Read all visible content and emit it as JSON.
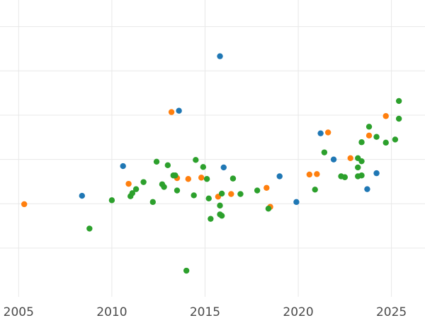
{
  "chart_data": {
    "type": "scatter",
    "title": "",
    "xlabel": "",
    "ylabel": "",
    "grid": true,
    "xlim": [
      2004.0,
      2026.8
    ],
    "ylim": [
      -1.1,
      5.6
    ],
    "x_ticks": [
      2005,
      2010,
      2015,
      2020,
      2025
    ],
    "y_gridlines": [
      0,
      1,
      2,
      3,
      4,
      5
    ],
    "colors": {
      "blue": "#1f77b4",
      "orange": "#ff7f0e",
      "green": "#2ca02c",
      "grid": "#e8e8e8",
      "tick_text": "#4a4a4a"
    },
    "series": [
      {
        "color": "#1f77b4",
        "points": [
          [
            2008.4,
            1.18
          ],
          [
            2010.6,
            1.85
          ],
          [
            2013.6,
            3.1
          ],
          [
            2015.8,
            4.33
          ],
          [
            2016.0,
            1.82
          ],
          [
            2019.0,
            1.62
          ],
          [
            2019.9,
            1.04
          ],
          [
            2021.2,
            2.59
          ],
          [
            2021.9,
            2.0
          ],
          [
            2023.7,
            1.33
          ],
          [
            2024.2,
            1.69
          ]
        ]
      },
      {
        "color": "#ff7f0e",
        "points": [
          [
            2005.3,
            0.99
          ],
          [
            2010.9,
            1.45
          ],
          [
            2013.2,
            3.07
          ],
          [
            2013.5,
            1.58
          ],
          [
            2014.1,
            1.56
          ],
          [
            2014.8,
            1.59
          ],
          [
            2015.7,
            1.16
          ],
          [
            2016.4,
            1.22
          ],
          [
            2018.3,
            1.36
          ],
          [
            2018.5,
            0.93
          ],
          [
            2020.6,
            1.66
          ],
          [
            2021.0,
            1.67
          ],
          [
            2021.6,
            2.61
          ],
          [
            2022.8,
            2.03
          ],
          [
            2023.8,
            2.54
          ],
          [
            2024.7,
            2.98
          ]
        ]
      },
      {
        "color": "#2ca02c",
        "points": [
          [
            2008.8,
            0.44
          ],
          [
            2010.0,
            1.08
          ],
          [
            2011.0,
            1.17
          ],
          [
            2011.1,
            1.24
          ],
          [
            2011.3,
            1.33
          ],
          [
            2011.7,
            1.49
          ],
          [
            2012.2,
            1.04
          ],
          [
            2012.4,
            1.95
          ],
          [
            2012.7,
            1.44
          ],
          [
            2012.8,
            1.38
          ],
          [
            2013.0,
            1.87
          ],
          [
            2013.3,
            1.64
          ],
          [
            2013.4,
            1.64
          ],
          [
            2013.5,
            1.3
          ],
          [
            2014.0,
            -0.51
          ],
          [
            2014.4,
            1.19
          ],
          [
            2014.5,
            1.99
          ],
          [
            2014.9,
            1.83
          ],
          [
            2015.1,
            1.56
          ],
          [
            2015.2,
            1.12
          ],
          [
            2015.3,
            0.66
          ],
          [
            2015.8,
            0.76
          ],
          [
            2015.8,
            0.96
          ],
          [
            2015.9,
            1.23
          ],
          [
            2015.9,
            0.73
          ],
          [
            2016.5,
            1.57
          ],
          [
            2016.9,
            1.22
          ],
          [
            2017.8,
            1.3
          ],
          [
            2018.4,
            0.89
          ],
          [
            2020.9,
            1.32
          ],
          [
            2021.4,
            2.16
          ],
          [
            2022.3,
            1.62
          ],
          [
            2022.5,
            1.6
          ],
          [
            2023.2,
            2.03
          ],
          [
            2023.2,
            1.82
          ],
          [
            2023.2,
            1.62
          ],
          [
            2023.4,
            1.96
          ],
          [
            2023.4,
            2.39
          ],
          [
            2023.4,
            1.64
          ],
          [
            2023.8,
            2.74
          ],
          [
            2024.2,
            2.51
          ],
          [
            2024.7,
            2.38
          ],
          [
            2025.2,
            2.45
          ],
          [
            2025.4,
            2.92
          ],
          [
            2025.4,
            3.32
          ]
        ]
      }
    ]
  }
}
